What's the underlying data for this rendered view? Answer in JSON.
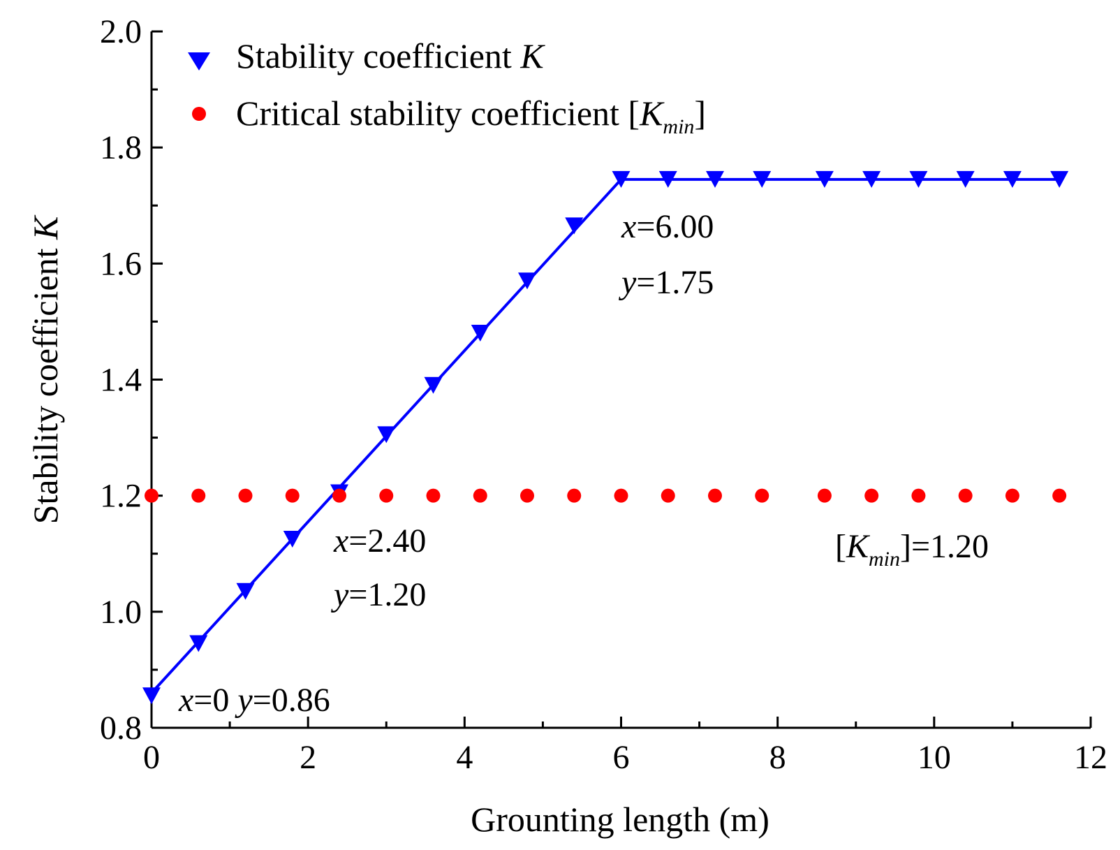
{
  "chart_data": {
    "type": "line",
    "xlabel": "Grounting length (m)",
    "ylabel": {
      "prefix": "Stability coefficient ",
      "symbol": "K"
    },
    "xlim": [
      0,
      12
    ],
    "ylim": [
      0.8,
      2.0
    ],
    "x_ticks": [
      0,
      2,
      4,
      6,
      8,
      10,
      12
    ],
    "y_ticks": [
      0.8,
      1.0,
      1.2,
      1.4,
      1.6,
      1.8,
      2.0
    ],
    "grid": false,
    "legend_position": "top-left",
    "series": [
      {
        "name": "Stability coefficient K",
        "label_prefix": "Stability coefficient ",
        "label_symbol": "K",
        "color": "#0000ff",
        "marker": "down-triangle",
        "line": true,
        "x": [
          0,
          0.6,
          1.2,
          1.8,
          2.4,
          3.0,
          3.6,
          4.2,
          4.8,
          5.4,
          6.0,
          6.6,
          7.2,
          7.8,
          8.6,
          9.2,
          9.8,
          10.4,
          11.0,
          11.6
        ],
        "y": [
          0.855,
          0.945,
          1.035,
          1.125,
          1.205,
          1.305,
          1.39,
          1.48,
          1.57,
          1.665,
          1.745,
          1.745,
          1.745,
          1.745,
          1.745,
          1.745,
          1.745,
          1.745,
          1.745,
          1.745
        ],
        "line_x": [
          0,
          6.0,
          11.6
        ],
        "line_y": [
          0.86,
          1.745,
          1.745
        ]
      },
      {
        "name": "Critical stability coefficient [Kmin]",
        "label_prefix": "Critical stability coefficient [",
        "label_symbol": "K",
        "label_sub": "min",
        "label_suffix": "]",
        "color": "#ff0000",
        "marker": "circle",
        "line": false,
        "x": [
          0,
          0.6,
          1.2,
          1.8,
          2.4,
          3.0,
          3.6,
          4.2,
          4.8,
          5.4,
          6.0,
          6.6,
          7.2,
          7.8,
          8.6,
          9.2,
          9.8,
          10.4,
          11.0,
          11.6
        ],
        "y": [
          1.2,
          1.2,
          1.2,
          1.2,
          1.2,
          1.2,
          1.2,
          1.2,
          1.2,
          1.2,
          1.2,
          1.2,
          1.2,
          1.2,
          1.2,
          1.2,
          1.2,
          1.2,
          1.2,
          1.2
        ]
      }
    ],
    "annotations": {
      "start": {
        "x_var": "x",
        "x_val": "=0",
        "y_var": "y",
        "y_val": "=0.86"
      },
      "cross": {
        "x_var": "x",
        "x_val": "=2.40",
        "y_var": "y",
        "y_val": "=1.20"
      },
      "plateau": {
        "x_var": "x",
        "x_val": "=6.00",
        "y_var": "y",
        "y_val": "=1.75"
      },
      "kmin": {
        "open": "[",
        "symbol": "K",
        "sub": "min",
        "close": "]=1.20"
      }
    }
  }
}
